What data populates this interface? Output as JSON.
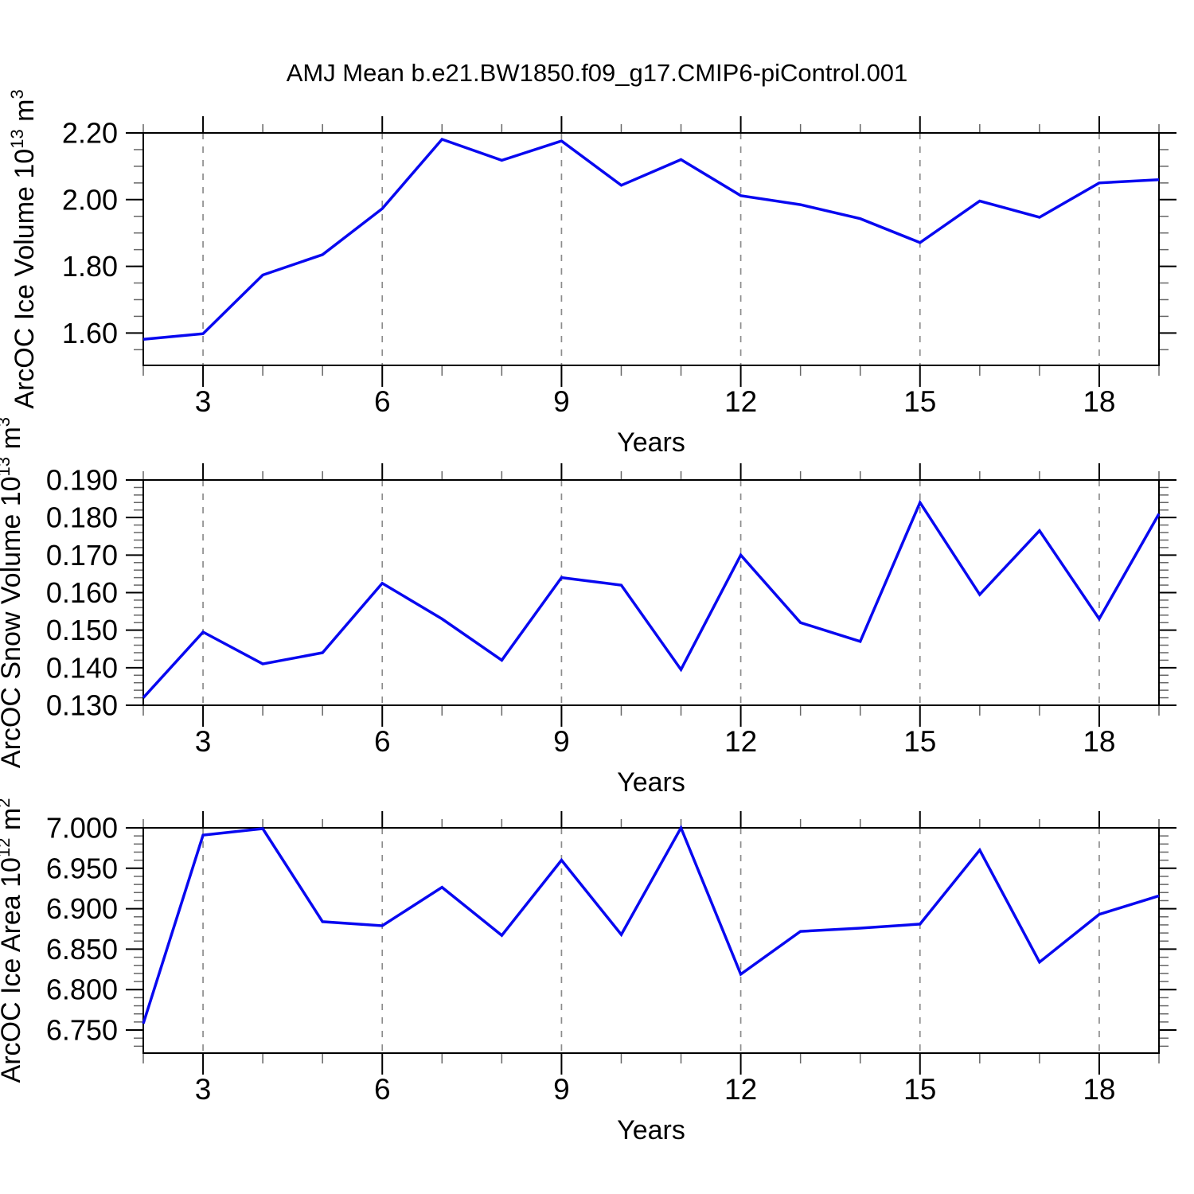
{
  "title": "AMJ Mean b.e21.BW1850.f09_g17.CMIP6-piControl.001",
  "colors": {
    "line": "#0808f0",
    "grid": "#8c8c8c",
    "axis": "#000000",
    "minor_tick": "#666666",
    "background": "#ffffff",
    "text": "#000000"
  },
  "chart_data": [
    {
      "type": "line",
      "name": "arcoc-ice-volume",
      "ylabel": "ArcOC Ice Volume 10^13 m^3",
      "ylabel_parts": {
        "base": "ArcOC Ice Volume 10",
        "sup1": "13",
        "mid": " m",
        "sup2": "3"
      },
      "xlabel": "Years",
      "x": [
        2,
        3,
        4,
        5,
        6,
        7,
        8,
        9,
        10,
        11,
        12,
        13,
        14,
        15,
        16,
        17,
        18,
        19
      ],
      "values": [
        1.581,
        1.598,
        1.774,
        1.835,
        1.973,
        2.181,
        2.118,
        2.176,
        2.043,
        2.12,
        2.012,
        1.985,
        1.943,
        1.871,
        1.996,
        1.947,
        2.05,
        2.06
      ],
      "xlim": [
        2,
        19
      ],
      "ylim": [
        1.503,
        2.2
      ],
      "xticks_major": [
        3,
        6,
        9,
        12,
        15,
        18
      ],
      "xtick_labels": [
        "3",
        "6",
        "9",
        "12",
        "15",
        "18"
      ],
      "x_minor_step": 1,
      "yticks_major": [
        1.6,
        1.8,
        2.0,
        2.2
      ],
      "ytick_labels": [
        "1.60",
        "1.80",
        "2.00",
        "2.20"
      ],
      "y_minor_step": 0.05,
      "grid": "vertical-dashed-at-major-x",
      "legend": "none"
    },
    {
      "type": "line",
      "name": "arcoc-snow-volume",
      "ylabel": "ArcOC Snow Volume 10^13 m^3",
      "ylabel_parts": {
        "base": "ArcOC Snow Volume 10",
        "sup1": "13",
        "mid": " m",
        "sup2": "3"
      },
      "xlabel": "Years",
      "x": [
        2,
        3,
        4,
        5,
        6,
        7,
        8,
        9,
        10,
        11,
        12,
        13,
        14,
        15,
        16,
        17,
        18,
        19
      ],
      "values": [
        0.132,
        0.1495,
        0.141,
        0.144,
        0.1625,
        0.153,
        0.142,
        0.164,
        0.162,
        0.1395,
        0.17,
        0.152,
        0.147,
        0.184,
        0.1595,
        0.1765,
        0.153,
        0.181
      ],
      "xlim": [
        2,
        19
      ],
      "ylim": [
        0.13,
        0.19
      ],
      "xticks_major": [
        3,
        6,
        9,
        12,
        15,
        18
      ],
      "xtick_labels": [
        "3",
        "6",
        "9",
        "12",
        "15",
        "18"
      ],
      "x_minor_step": 1,
      "yticks_major": [
        0.13,
        0.14,
        0.15,
        0.16,
        0.17,
        0.18,
        0.19
      ],
      "ytick_labels": [
        "0.130",
        "0.140",
        "0.150",
        "0.160",
        "0.170",
        "0.180",
        "0.190"
      ],
      "y_minor_step": 0.002,
      "grid": "vertical-dashed-at-major-x",
      "legend": "none"
    },
    {
      "type": "line",
      "name": "arcoc-ice-area",
      "ylabel": "ArcOC Ice Area 10^12 m^2",
      "ylabel_parts": {
        "base": "ArcOC Ice Area 10",
        "sup1": "12",
        "mid": " m",
        "sup2": "2"
      },
      "xlabel": "Years",
      "x": [
        2,
        3,
        4,
        5,
        6,
        7,
        8,
        9,
        10,
        11,
        12,
        13,
        14,
        15,
        16,
        17,
        18,
        19
      ],
      "values": [
        6.758,
        6.991,
        6.999,
        6.884,
        6.879,
        6.9265,
        6.867,
        6.96,
        6.868,
        7.0,
        6.819,
        6.872,
        6.876,
        6.881,
        6.9725,
        6.834,
        6.893,
        6.916
      ],
      "xlim": [
        2,
        19
      ],
      "ylim": [
        6.7215,
        7.0
      ],
      "xticks_major": [
        3,
        6,
        9,
        12,
        15,
        18
      ],
      "xtick_labels": [
        "3",
        "6",
        "9",
        "12",
        "15",
        "18"
      ],
      "x_minor_step": 1,
      "yticks_major": [
        6.75,
        6.8,
        6.85,
        6.9,
        6.95,
        7.0
      ],
      "ytick_labels": [
        "6.750",
        "6.800",
        "6.850",
        "6.900",
        "6.950",
        "7.000"
      ],
      "y_minor_step": 0.01,
      "grid": "vertical-dashed-at-major-x",
      "legend": "none"
    }
  ]
}
